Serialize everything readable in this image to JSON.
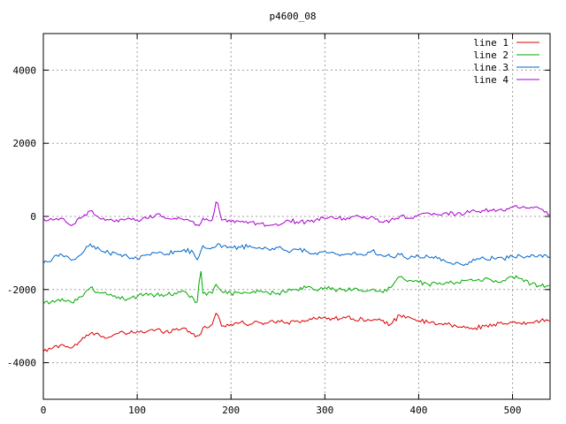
{
  "chart_data": {
    "type": "line",
    "title": "p4600_08",
    "xlabel": "",
    "ylabel": "",
    "xlim": [
      0,
      540
    ],
    "ylim": [
      -5000,
      5000
    ],
    "x_ticks": [
      0,
      100,
      200,
      300,
      400,
      500
    ],
    "y_ticks": [
      -4000,
      -2000,
      0,
      2000,
      4000
    ],
    "grid": true,
    "legend_position": "top-right",
    "sample_step": 10,
    "series": [
      {
        "name": "line 1",
        "color": "#dd0000",
        "x": [
          0,
          10,
          20,
          30,
          40,
          50,
          60,
          70,
          80,
          90,
          100,
          110,
          120,
          130,
          140,
          150,
          160,
          165,
          170,
          180,
          185,
          190,
          200,
          210,
          220,
          230,
          240,
          250,
          260,
          270,
          280,
          290,
          300,
          310,
          320,
          330,
          340,
          350,
          360,
          370,
          380,
          390,
          400,
          410,
          420,
          430,
          440,
          450,
          460,
          470,
          480,
          490,
          500,
          510,
          520,
          530,
          540
        ],
        "values": [
          -3700,
          -3600,
          -3500,
          -3600,
          -3400,
          -3200,
          -3250,
          -3300,
          -3200,
          -3200,
          -3150,
          -3150,
          -3100,
          -3150,
          -3100,
          -3050,
          -3200,
          -3350,
          -3050,
          -2950,
          -2600,
          -3000,
          -2950,
          -2900,
          -2950,
          -2900,
          -2900,
          -2850,
          -2900,
          -2850,
          -2850,
          -2800,
          -2750,
          -2800,
          -2750,
          -2800,
          -2800,
          -2850,
          -2850,
          -2950,
          -2700,
          -2750,
          -2850,
          -2900,
          -2950,
          -2950,
          -3000,
          -3050,
          -3050,
          -3000,
          -2950,
          -2950,
          -2900,
          -2950,
          -2900,
          -2850,
          -2850
        ]
      },
      {
        "name": "line 2",
        "color": "#00aa00",
        "x": [
          0,
          10,
          20,
          30,
          40,
          50,
          60,
          70,
          80,
          90,
          100,
          110,
          120,
          130,
          140,
          150,
          160,
          165,
          167,
          170,
          180,
          185,
          190,
          200,
          210,
          220,
          230,
          240,
          250,
          260,
          270,
          280,
          290,
          300,
          310,
          320,
          330,
          340,
          350,
          360,
          370,
          380,
          390,
          400,
          410,
          420,
          430,
          440,
          450,
          460,
          470,
          480,
          490,
          500,
          510,
          520,
          530,
          540
        ],
        "values": [
          -2400,
          -2300,
          -2250,
          -2350,
          -2200,
          -1950,
          -2100,
          -2150,
          -2200,
          -2250,
          -2200,
          -2100,
          -2150,
          -2150,
          -2100,
          -2050,
          -2250,
          -2400,
          -1200,
          -2100,
          -2100,
          -1850,
          -2050,
          -2100,
          -2100,
          -2100,
          -2050,
          -2100,
          -2100,
          -2050,
          -2000,
          -1950,
          -2000,
          -1950,
          -2000,
          -2000,
          -2000,
          -2050,
          -2000,
          -2050,
          -1950,
          -1650,
          -1750,
          -1800,
          -1850,
          -1850,
          -1800,
          -1800,
          -1750,
          -1750,
          -1700,
          -1800,
          -1750,
          -1650,
          -1700,
          -1850,
          -1900,
          -1900
        ]
      },
      {
        "name": "line 3",
        "color": "#0066cc",
        "x": [
          0,
          10,
          20,
          30,
          40,
          50,
          60,
          70,
          80,
          90,
          100,
          110,
          120,
          130,
          140,
          150,
          160,
          165,
          170,
          180,
          185,
          190,
          200,
          210,
          220,
          230,
          240,
          250,
          260,
          270,
          280,
          290,
          300,
          310,
          320,
          330,
          340,
          350,
          360,
          370,
          380,
          390,
          400,
          410,
          420,
          430,
          440,
          450,
          460,
          470,
          480,
          490,
          500,
          510,
          520,
          530,
          540
        ],
        "values": [
          -1300,
          -1150,
          -1050,
          -1200,
          -1050,
          -750,
          -900,
          -1000,
          -1050,
          -1100,
          -1150,
          -1050,
          -1000,
          -1050,
          -950,
          -900,
          -1000,
          -1200,
          -800,
          -850,
          -750,
          -850,
          -850,
          -850,
          -800,
          -850,
          -900,
          -850,
          -950,
          -900,
          -950,
          -1000,
          -950,
          -1000,
          -1050,
          -1000,
          -1050,
          -950,
          -1050,
          -1100,
          -1050,
          -1150,
          -1100,
          -1100,
          -1150,
          -1250,
          -1250,
          -1300,
          -1200,
          -1150,
          -1150,
          -1150,
          -1100,
          -1100,
          -1050,
          -1050,
          -1100
        ]
      },
      {
        "name": "line 4",
        "color": "#aa00cc",
        "x": [
          0,
          10,
          20,
          30,
          40,
          50,
          60,
          70,
          80,
          90,
          100,
          110,
          120,
          130,
          140,
          150,
          160,
          165,
          170,
          180,
          185,
          190,
          200,
          210,
          220,
          230,
          240,
          250,
          260,
          270,
          280,
          290,
          300,
          310,
          320,
          330,
          340,
          350,
          360,
          370,
          380,
          390,
          400,
          410,
          420,
          430,
          440,
          450,
          460,
          470,
          480,
          490,
          500,
          510,
          520,
          530,
          540
        ],
        "values": [
          -50,
          -100,
          -50,
          -250,
          -50,
          150,
          -50,
          -100,
          -150,
          -50,
          -100,
          -50,
          50,
          -50,
          -50,
          -100,
          -150,
          -300,
          -50,
          -100,
          450,
          -100,
          -150,
          -150,
          -150,
          -200,
          -250,
          -250,
          -100,
          -150,
          -150,
          -100,
          -50,
          -50,
          -50,
          0,
          -50,
          0,
          -150,
          -100,
          0,
          -50,
          50,
          100,
          50,
          100,
          50,
          100,
          150,
          150,
          200,
          150,
          250,
          250,
          250,
          200,
          50
        ]
      }
    ]
  }
}
